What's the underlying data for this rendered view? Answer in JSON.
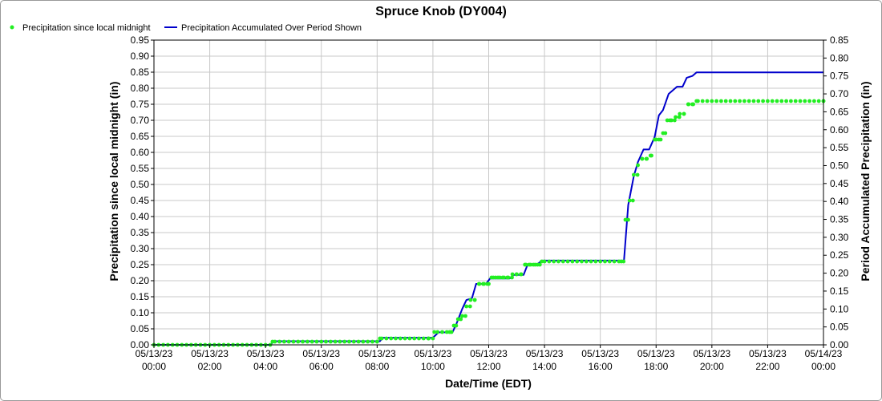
{
  "chart_data": {
    "type": "line",
    "title": "Spruce Knob (DY004)",
    "xlabel": "Date/Time (EDT)",
    "ylabel_left": "Precipitation since local midnight (in)",
    "ylabel_right": "Period Accumulated Precipitation (in)",
    "legend_placement": "top-left",
    "grid": true,
    "colors": {
      "points": "#22ee22",
      "line": "#0000cc"
    },
    "ylim_left": [
      0,
      0.95
    ],
    "ylim_right": [
      0,
      0.85
    ],
    "xlim_hours": [
      0,
      24
    ],
    "x_ticks": [
      {
        "hour": 0,
        "date": "05/13/23",
        "time": "00:00"
      },
      {
        "hour": 2,
        "date": "05/13/23",
        "time": "02:00"
      },
      {
        "hour": 4,
        "date": "05/13/23",
        "time": "04:00"
      },
      {
        "hour": 6,
        "date": "05/13/23",
        "time": "06:00"
      },
      {
        "hour": 8,
        "date": "05/13/23",
        "time": "08:00"
      },
      {
        "hour": 10,
        "date": "05/13/23",
        "time": "10:00"
      },
      {
        "hour": 12,
        "date": "05/13/23",
        "time": "12:00"
      },
      {
        "hour": 14,
        "date": "05/13/23",
        "time": "14:00"
      },
      {
        "hour": 16,
        "date": "05/13/23",
        "time": "16:00"
      },
      {
        "hour": 18,
        "date": "05/13/23",
        "time": "18:00"
      },
      {
        "hour": 20,
        "date": "05/13/23",
        "time": "20:00"
      },
      {
        "hour": 22,
        "date": "05/13/23",
        "time": "22:00"
      },
      {
        "hour": 24,
        "date": "05/14/23",
        "time": "00:00"
      }
    ],
    "y_ticks_left": [
      "0.00",
      "0.05",
      "0.10",
      "0.15",
      "0.20",
      "0.25",
      "0.30",
      "0.35",
      "0.40",
      "0.45",
      "0.50",
      "0.55",
      "0.60",
      "0.65",
      "0.70",
      "0.75",
      "0.80",
      "0.85",
      "0.90",
      "0.95"
    ],
    "y_ticks_right": [
      "0.00",
      "0.05",
      "0.10",
      "0.15",
      "0.20",
      "0.25",
      "0.30",
      "0.35",
      "0.40",
      "0.45",
      "0.50",
      "0.55",
      "0.60",
      "0.65",
      "0.70",
      "0.75",
      "0.80",
      "0.85"
    ],
    "series": [
      {
        "name": "Precipitation since local midnight",
        "axis": "left",
        "style": "points",
        "points": [
          [
            4.25,
            0.01
          ],
          [
            8.1,
            0.02
          ],
          [
            9.85,
            0.02
          ],
          [
            10.05,
            0.04
          ],
          [
            10.6,
            0.04
          ],
          [
            10.75,
            0.06
          ],
          [
            10.9,
            0.08
          ],
          [
            11.05,
            0.09
          ],
          [
            11.2,
            0.12
          ],
          [
            11.35,
            0.14
          ],
          [
            11.5,
            0.14
          ],
          [
            11.65,
            0.19
          ],
          [
            11.8,
            0.19
          ],
          [
            11.95,
            0.19
          ],
          [
            12.1,
            0.21
          ],
          [
            12.25,
            0.21
          ],
          [
            12.4,
            0.21
          ],
          [
            12.55,
            0.21
          ],
          [
            12.7,
            0.21
          ],
          [
            12.85,
            0.22
          ],
          [
            13.0,
            0.22
          ],
          [
            13.15,
            0.22
          ],
          [
            13.3,
            0.25
          ],
          [
            13.45,
            0.25
          ],
          [
            13.6,
            0.25
          ],
          [
            13.75,
            0.25
          ],
          [
            13.9,
            0.26
          ],
          [
            16.75,
            0.26
          ],
          [
            16.9,
            0.39
          ],
          [
            17.05,
            0.45
          ],
          [
            17.2,
            0.53
          ],
          [
            17.35,
            0.56
          ],
          [
            17.5,
            0.58
          ],
          [
            17.65,
            0.58
          ],
          [
            17.8,
            0.59
          ],
          [
            17.95,
            0.64
          ],
          [
            18.1,
            0.64
          ],
          [
            18.25,
            0.66
          ],
          [
            18.4,
            0.7
          ],
          [
            18.55,
            0.7
          ],
          [
            18.7,
            0.71
          ],
          [
            18.85,
            0.72
          ],
          [
            19.0,
            0.72
          ],
          [
            19.15,
            0.75
          ],
          [
            19.3,
            0.75
          ],
          [
            19.45,
            0.76
          ],
          [
            24.0,
            0.76
          ]
        ]
      },
      {
        "name": "Precipitation Accumulated Over Period Shown",
        "axis": "right",
        "style": "line",
        "points": [
          [
            0,
            0
          ],
          [
            4.2,
            0
          ],
          [
            4.25,
            0.01
          ],
          [
            8.1,
            0.01
          ],
          [
            8.2,
            0.02
          ],
          [
            10.0,
            0.02
          ],
          [
            10.2,
            0.035
          ],
          [
            10.7,
            0.035
          ],
          [
            10.85,
            0.06
          ],
          [
            11.05,
            0.1
          ],
          [
            11.2,
            0.125
          ],
          [
            11.4,
            0.13
          ],
          [
            11.55,
            0.17
          ],
          [
            11.9,
            0.17
          ],
          [
            12.05,
            0.185
          ],
          [
            12.75,
            0.185
          ],
          [
            12.9,
            0.195
          ],
          [
            13.25,
            0.195
          ],
          [
            13.4,
            0.225
          ],
          [
            13.75,
            0.225
          ],
          [
            13.9,
            0.235
          ],
          [
            16.85,
            0.235
          ],
          [
            17.0,
            0.39
          ],
          [
            17.2,
            0.47
          ],
          [
            17.35,
            0.51
          ],
          [
            17.55,
            0.545
          ],
          [
            17.75,
            0.545
          ],
          [
            17.95,
            0.58
          ],
          [
            18.1,
            0.64
          ],
          [
            18.25,
            0.655
          ],
          [
            18.45,
            0.7
          ],
          [
            18.6,
            0.71
          ],
          [
            18.75,
            0.72
          ],
          [
            18.95,
            0.72
          ],
          [
            19.1,
            0.745
          ],
          [
            19.3,
            0.75
          ],
          [
            19.45,
            0.76
          ],
          [
            24.0,
            0.76
          ]
        ]
      }
    ]
  }
}
